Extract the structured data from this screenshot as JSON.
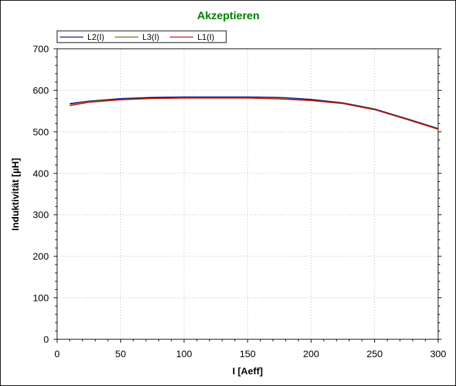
{
  "chart_data": {
    "type": "line",
    "title": "Akzeptieren",
    "xlabel": "I [Aeff]",
    "ylabel": "Induktivität [µH]",
    "xlim": [
      0,
      300
    ],
    "ylim": [
      0,
      700
    ],
    "xticks": [
      0,
      50,
      100,
      150,
      200,
      250,
      300
    ],
    "yticks": [
      0,
      100,
      200,
      300,
      400,
      500,
      600,
      700
    ],
    "grid": true,
    "legend_position": "top-left",
    "colors": {
      "title": "#008000",
      "L2": "#00008B",
      "L3": "#556B00",
      "L1": "#CC0000"
    },
    "series": [
      {
        "name": "L2(I)",
        "x": [
          10,
          25,
          50,
          75,
          100,
          125,
          150,
          175,
          200,
          225,
          250,
          275,
          300
        ],
        "values": [
          568,
          574,
          580,
          583,
          584,
          584,
          584,
          583,
          578,
          570,
          555,
          532,
          508
        ]
      },
      {
        "name": "L3(I)",
        "x": [
          10,
          25,
          50,
          75,
          100,
          125,
          150,
          175,
          200,
          225,
          250,
          275,
          300
        ],
        "values": [
          566,
          573,
          578,
          581,
          582,
          582,
          582,
          580,
          576,
          569,
          554,
          531,
          507
        ]
      },
      {
        "name": "L1(I)",
        "x": [
          10,
          25,
          50,
          75,
          100,
          125,
          150,
          175,
          200,
          225,
          250,
          275,
          300
        ],
        "values": [
          563,
          571,
          577,
          580,
          581,
          581,
          581,
          579,
          575,
          568,
          553,
          530,
          506
        ]
      }
    ]
  }
}
